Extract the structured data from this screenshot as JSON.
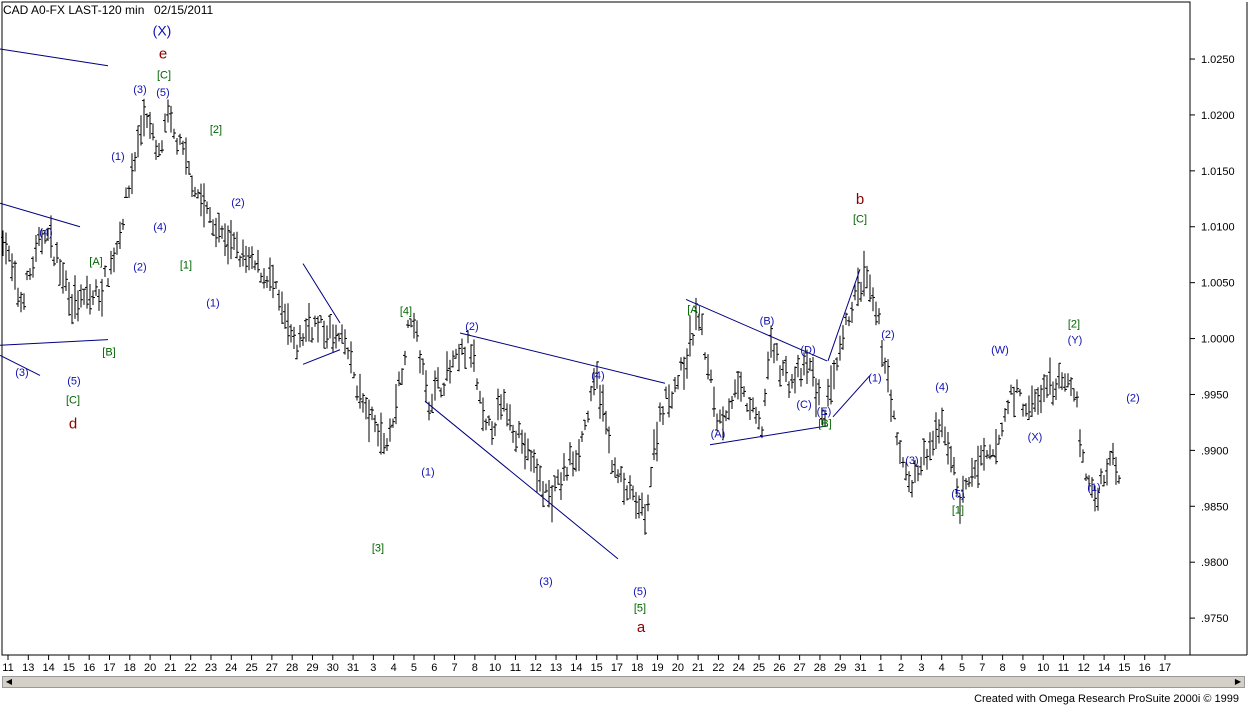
{
  "header": {
    "symbol": "CAD A0-FX LAST-120 min",
    "date": "02/15/2011"
  },
  "footer": {
    "credit": "Created with Omega Research ProSuite 2000i © 1999"
  },
  "colors": {
    "bars": "#000000",
    "blue_labels": "#1010b0",
    "green_labels": "#006600",
    "red_labels": "#8b0000",
    "trendlines": "#000080",
    "grid": "#000000"
  },
  "chart_data": {
    "type": "ohlc",
    "title": "CAD A0-FX LAST-120 min",
    "ylim": [
      0.9717,
      1.0301
    ],
    "yticks": [
      ".9750",
      ".9800",
      ".9850",
      ".9900",
      ".9950",
      "1.0000",
      "1.0050",
      "1.0100",
      "1.0150",
      "1.0200",
      "1.0250"
    ],
    "xticks": [
      "11",
      "13",
      "14",
      "15",
      "16",
      "17",
      "18",
      "20",
      "21",
      "22",
      "23",
      "24",
      "25",
      "27",
      "28",
      "29",
      "30",
      "31",
      "3",
      "4",
      "5",
      "6",
      "7",
      "8",
      "10",
      "11",
      "12",
      "13",
      "14",
      "15",
      "17",
      "18",
      "19",
      "20",
      "21",
      "22",
      "24",
      "25",
      "26",
      "27",
      "28",
      "29",
      "31",
      "1",
      "2",
      "3",
      "4",
      "5",
      "7",
      "8",
      "9",
      "10",
      "11",
      "12",
      "14",
      "15",
      "16",
      "17"
    ],
    "price_path": [
      [
        0,
        1.0105
      ],
      [
        20,
        1.003
      ],
      [
        45,
        1.0098
      ],
      [
        75,
        1.003
      ],
      [
        100,
        1.004
      ],
      [
        115,
        1.0075
      ],
      [
        128,
        1.013
      ],
      [
        145,
        1.0205
      ],
      [
        158,
        1.016
      ],
      [
        168,
        1.0195
      ],
      [
        185,
        1.016
      ],
      [
        200,
        1.0125
      ],
      [
        215,
        1.01
      ],
      [
        245,
        1.007
      ],
      [
        270,
        1.0055
      ],
      [
        295,
        0.999
      ],
      [
        310,
        1.0015
      ],
      [
        345,
        0.9995
      ],
      [
        365,
        0.9935
      ],
      [
        388,
        0.9905
      ],
      [
        412,
        1.0025
      ],
      [
        428,
        0.9945
      ],
      [
        470,
        0.9995
      ],
      [
        485,
        0.9915
      ],
      [
        505,
        0.994
      ],
      [
        550,
        0.9855
      ],
      [
        580,
        0.9905
      ],
      [
        597,
        0.9965
      ],
      [
        615,
        0.988
      ],
      [
        645,
        0.984
      ],
      [
        660,
        0.9935
      ],
      [
        685,
        0.9975
      ],
      [
        698,
        1.0025
      ],
      [
        718,
        0.9925
      ],
      [
        738,
        0.9955
      ],
      [
        762,
        0.992
      ],
      [
        770,
        0.9995
      ],
      [
        790,
        0.996
      ],
      [
        810,
        0.9975
      ],
      [
        823,
        0.993
      ],
      [
        838,
        0.9975
      ],
      [
        850,
        1.0025
      ],
      [
        865,
        1.0055
      ],
      [
        878,
        1.0015
      ],
      [
        888,
        0.9965
      ],
      [
        898,
        0.99
      ],
      [
        912,
        0.987
      ],
      [
        935,
        0.991
      ],
      [
        945,
        0.992
      ],
      [
        960,
        0.9855
      ],
      [
        975,
        0.9885
      ],
      [
        995,
        0.9895
      ],
      [
        1012,
        0.9955
      ],
      [
        1030,
        0.9935
      ],
      [
        1052,
        0.996
      ],
      [
        1076,
        0.9955
      ],
      [
        1082,
        0.989
      ],
      [
        1095,
        0.9855
      ],
      [
        1110,
        0.9895
      ],
      [
        1120,
        0.988
      ]
    ],
    "annotations": [
      {
        "text": "(X)",
        "x": 162,
        "y": 1.0275,
        "color": "blue"
      },
      {
        "text": "e",
        "x": 163,
        "y": 1.0255,
        "color": "red"
      },
      {
        "text": "[C]",
        "x": 164,
        "y": 1.0236,
        "color": "green"
      },
      {
        "text": "(3)",
        "x": 140,
        "y": 1.0223,
        "color": "blue"
      },
      {
        "text": "(5)",
        "x": 163,
        "y": 1.022,
        "color": "blue"
      },
      {
        "text": "[2]",
        "x": 216,
        "y": 1.0187,
        "color": "green"
      },
      {
        "text": "(1)",
        "x": 118,
        "y": 1.0163,
        "color": "blue"
      },
      {
        "text": "(2)",
        "x": 238,
        "y": 1.0122,
        "color": "blue"
      },
      {
        "text": "(4)",
        "x": 160,
        "y": 1.01,
        "color": "blue"
      },
      {
        "text": "(4)",
        "x": 46,
        "y": 1.0095,
        "color": "blue"
      },
      {
        "text": "(2)",
        "x": 140,
        "y": 1.0064,
        "color": "blue"
      },
      {
        "text": "[1]",
        "x": 186,
        "y": 1.0066,
        "color": "green"
      },
      {
        "text": "[A]",
        "x": 96,
        "y": 1.0069,
        "color": "green"
      },
      {
        "text": "(1)",
        "x": 213,
        "y": 1.0032,
        "color": "blue"
      },
      {
        "text": "[B]",
        "x": 109,
        "y": 0.9988,
        "color": "green"
      },
      {
        "text": "(3)",
        "x": 22,
        "y": 0.997,
        "color": "blue"
      },
      {
        "text": "(5)",
        "x": 74,
        "y": 0.9962,
        "color": "blue"
      },
      {
        "text": "[C]",
        "x": 73,
        "y": 0.9945,
        "color": "green"
      },
      {
        "text": "d",
        "x": 73,
        "y": 0.9924,
        "color": "red"
      },
      {
        "text": "[4]",
        "x": 406,
        "y": 1.0025,
        "color": "green"
      },
      {
        "text": "(2)",
        "x": 472,
        "y": 1.0011,
        "color": "blue"
      },
      {
        "text": "(4)",
        "x": 598,
        "y": 0.9967,
        "color": "blue"
      },
      {
        "text": "(1)",
        "x": 428,
        "y": 0.9881,
        "color": "blue"
      },
      {
        "text": "[3]",
        "x": 378,
        "y": 0.9813,
        "color": "green"
      },
      {
        "text": "(3)",
        "x": 546,
        "y": 0.9783,
        "color": "blue"
      },
      {
        "text": "(5)",
        "x": 640,
        "y": 0.9774,
        "color": "blue"
      },
      {
        "text": "[5]",
        "x": 640,
        "y": 0.9759,
        "color": "green"
      },
      {
        "text": "a",
        "x": 641,
        "y": 0.9742,
        "color": "red"
      },
      {
        "text": "[A]",
        "x": 694,
        "y": 1.0026,
        "color": "green"
      },
      {
        "text": "(B)",
        "x": 767,
        "y": 1.0016,
        "color": "blue"
      },
      {
        "text": "(D)",
        "x": 808,
        "y": 0.999,
        "color": "blue"
      },
      {
        "text": "(C)",
        "x": 804,
        "y": 0.9941,
        "color": "blue"
      },
      {
        "text": "(E)",
        "x": 824,
        "y": 0.9935,
        "color": "blue"
      },
      {
        "text": "[B]",
        "x": 825,
        "y": 0.9924,
        "color": "green"
      },
      {
        "text": "(A)",
        "x": 718,
        "y": 0.9915,
        "color": "blue"
      },
      {
        "text": "b",
        "x": 860,
        "y": 1.0125,
        "color": "red"
      },
      {
        "text": "[C]",
        "x": 860,
        "y": 1.0107,
        "color": "green"
      },
      {
        "text": "(2)",
        "x": 888,
        "y": 1.0004,
        "color": "blue"
      },
      {
        "text": "(1)",
        "x": 875,
        "y": 0.9965,
        "color": "blue"
      },
      {
        "text": "(4)",
        "x": 942,
        "y": 0.9957,
        "color": "blue"
      },
      {
        "text": "(3)",
        "x": 912,
        "y": 0.9891,
        "color": "blue"
      },
      {
        "text": "(5)",
        "x": 958,
        "y": 0.9861,
        "color": "blue"
      },
      {
        "text": "[1]",
        "x": 958,
        "y": 0.9847,
        "color": "green"
      },
      {
        "text": "(W)",
        "x": 1000,
        "y": 0.999,
        "color": "blue"
      },
      {
        "text": "[2]",
        "x": 1074,
        "y": 1.0013,
        "color": "green"
      },
      {
        "text": "(Y)",
        "x": 1075,
        "y": 0.9999,
        "color": "blue"
      },
      {
        "text": "(X)",
        "x": 1035,
        "y": 0.9912,
        "color": "blue"
      },
      {
        "text": "(2)",
        "x": 1133,
        "y": 0.9947,
        "color": "blue"
      },
      {
        "text": "(1)",
        "x": 1094,
        "y": 0.9867,
        "color": "blue"
      }
    ],
    "trendlines": [
      [
        [
          0,
          1.0259
        ],
        [
          108,
          1.0244
        ]
      ],
      [
        [
          0,
          1.0121
        ],
        [
          80,
          1.01
        ]
      ],
      [
        [
          0,
          0.9985
        ],
        [
          40,
          0.9967
        ]
      ],
      [
        [
          0,
          0.9994
        ],
        [
          108,
          0.9999
        ]
      ],
      [
        [
          303,
          1.0067
        ],
        [
          340,
          1.0014
        ]
      ],
      [
        [
          303,
          0.9977
        ],
        [
          340,
          0.999
        ]
      ],
      [
        [
          460,
          1.0005
        ],
        [
          665,
          0.996
        ]
      ],
      [
        [
          425,
          0.9944
        ],
        [
          618,
          0.9803
        ]
      ],
      [
        [
          686,
          1.0035
        ],
        [
          827,
          0.998
        ]
      ],
      [
        [
          710,
          0.9905
        ],
        [
          828,
          0.9922
        ]
      ],
      [
        [
          828,
          0.998
        ],
        [
          860,
          1.0062
        ]
      ],
      [
        [
          833,
          0.993
        ],
        [
          870,
          0.9967
        ]
      ]
    ]
  }
}
